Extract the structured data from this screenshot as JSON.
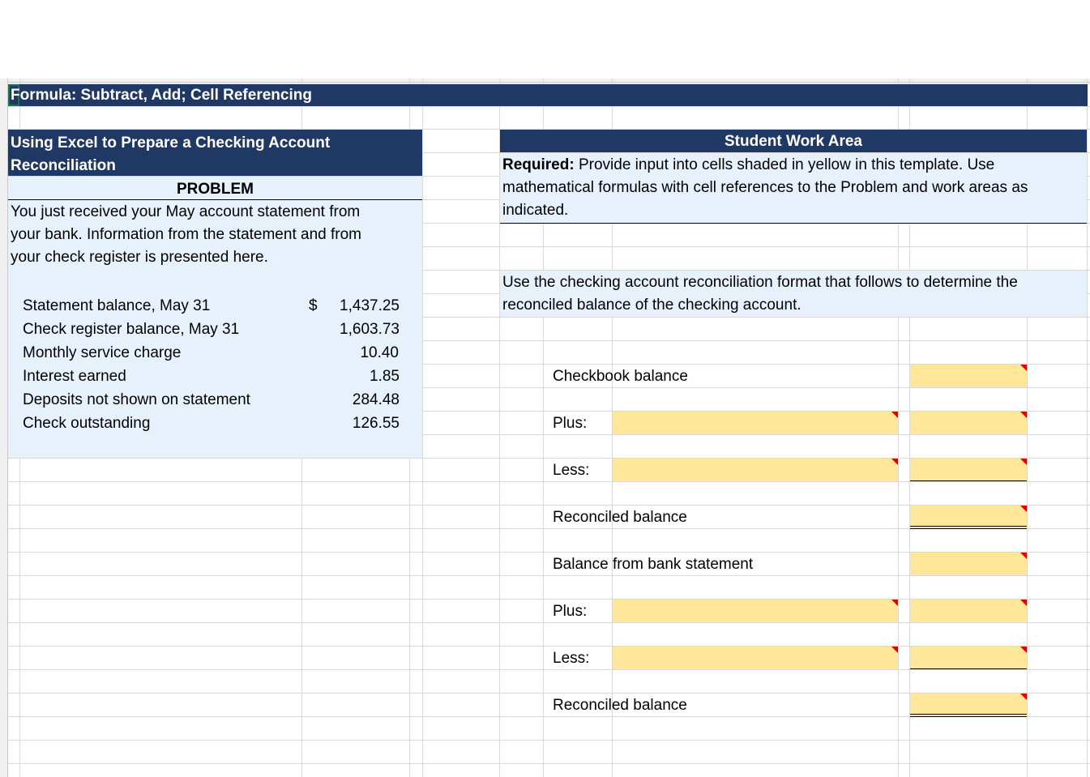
{
  "title_bar": {
    "text": "Formula: Subtract, Add; Cell Referencing"
  },
  "problem": {
    "header": "Using Excel to Prepare a Checking Account Reconciliation",
    "header_line1": "Using Excel to Prepare a Checking Account",
    "header_line2": "Reconciliation",
    "label": "PROBLEM",
    "description_lines": [
      "You just received your May account statement from",
      "your bank. Information from the statement and from",
      "your check register is presented here."
    ],
    "currency_symbol": "$",
    "items": [
      {
        "label": "Statement balance, May 31",
        "value": "1,437.25"
      },
      {
        "label": "Check register balance, May 31",
        "value": "1,603.73"
      },
      {
        "label": "Monthly service charge",
        "value": "10.40"
      },
      {
        "label": "Interest earned",
        "value": "1.85"
      },
      {
        "label": "Deposits not shown on statement",
        "value": "284.48"
      },
      {
        "label": "Check outstanding",
        "value": "126.55"
      }
    ]
  },
  "work_area": {
    "header": "Student Work Area",
    "required_label": "Required:",
    "required_lines": [
      " Provide input into cells shaded in yellow in this template. Use",
      "mathematical formulas with cell references to the Problem and work areas as",
      "indicated."
    ],
    "instruction_lines": [
      "Use the checking account reconciliation format that follows to determine the",
      "reconciled balance of the checking account."
    ],
    "rows": [
      {
        "label": "Checkbook balance"
      },
      {
        "label": "Plus:"
      },
      {
        "label": "Less:"
      },
      {
        "label": "Reconciled balance"
      },
      {
        "label": "Balance from bank statement"
      },
      {
        "label": "Plus:"
      },
      {
        "label": "Less:"
      },
      {
        "label": "Reconciled balance"
      }
    ]
  },
  "colors": {
    "navy": "#203864",
    "light_blue": "#e7f1fb",
    "input_yellow": "#ffe699",
    "grid": "#d9d9d9",
    "comment_marker": "#e00000"
  }
}
